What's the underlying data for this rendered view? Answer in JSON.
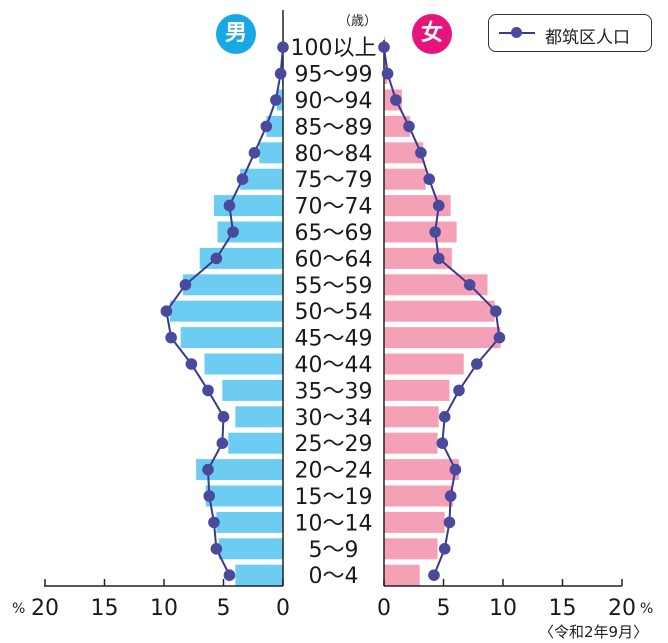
{
  "labels": {
    "male": "男",
    "female": "女",
    "age_unit": "（歳）",
    "percent_left": "%",
    "percent_right": "%",
    "note": "〈令和2年9月〉"
  },
  "colors": {
    "male_bar": "#6cccf2",
    "female_bar": "#f4a1b8",
    "male_badge": "#19a8e6",
    "female_badge": "#e5157c",
    "line": "#3a3a8c",
    "marker": "#4a4a9c"
  },
  "chart_data": {
    "type": "bar",
    "orientation": "horizontal",
    "layout": "population-pyramid",
    "categories": [
      "100以上",
      "95～99",
      "90～94",
      "85～89",
      "80～84",
      "75～79",
      "70～74",
      "65～69",
      "60～64",
      "55～59",
      "50～54",
      "45～49",
      "40～44",
      "35～39",
      "30～34",
      "25～29",
      "20～24",
      "15～19",
      "10～14",
      "5～9",
      "0～4"
    ],
    "series": [
      {
        "side": "male",
        "kind": "bar",
        "values": [
          0,
          0.1,
          0.5,
          1.4,
          2.0,
          3.6,
          5.8,
          5.5,
          7.0,
          8.4,
          9.5,
          8.6,
          6.6,
          5.1,
          4.0,
          4.6,
          7.3,
          6.5,
          5.6,
          5.4,
          4.0
        ]
      },
      {
        "side": "female",
        "kind": "bar",
        "values": [
          0.1,
          0.3,
          1.5,
          2.2,
          3.3,
          3.5,
          5.6,
          6.1,
          5.7,
          8.7,
          9.3,
          9.8,
          6.7,
          5.5,
          4.6,
          4.5,
          6.3,
          5.8,
          5.1,
          4.5,
          3.0
        ]
      },
      {
        "name": "都筑区人口",
        "side": "male",
        "kind": "line",
        "values": [
          0,
          0.2,
          0.6,
          1.4,
          2.4,
          3.4,
          4.5,
          4.2,
          5.6,
          8.2,
          9.8,
          9.4,
          7.7,
          6.3,
          5.0,
          5.1,
          6.3,
          6.2,
          5.8,
          5.6,
          4.5
        ]
      },
      {
        "name": "都筑区人口",
        "side": "female",
        "kind": "line",
        "values": [
          0,
          0.3,
          1.0,
          2.1,
          3.1,
          3.8,
          4.6,
          4.3,
          4.6,
          7.2,
          9.4,
          9.7,
          7.8,
          6.3,
          5.1,
          4.9,
          6.0,
          5.6,
          5.5,
          5.1,
          4.2
        ]
      }
    ],
    "ticks": [
      "20",
      "15",
      "10",
      "5",
      "0",
      "0",
      "5",
      "10",
      "15",
      "20"
    ],
    "xlim": [
      0,
      20
    ],
    "legend": {
      "label": "都筑区人口",
      "position": "top-right"
    }
  }
}
